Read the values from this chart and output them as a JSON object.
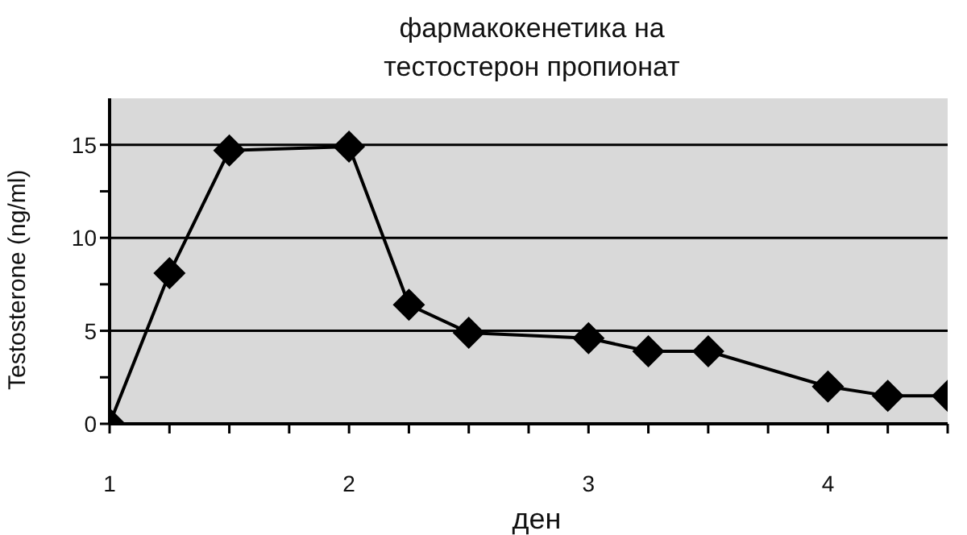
{
  "chart_data": {
    "type": "line",
    "title": "фармакокенетика на\nтестостерон пропионат",
    "xlabel": "ден",
    "ylabel": "Testosterone (ng/ml)",
    "x": [
      1,
      1.25,
      1.5,
      2,
      2.25,
      2.5,
      3,
      3.25,
      3.5,
      4,
      4.25,
      4.5
    ],
    "series": [
      {
        "color": "#000000",
        "values": [
          0,
          8.1,
          14.7,
          14.9,
          6.4,
          4.9,
          4.6,
          3.9,
          3.9,
          2.0,
          1.5,
          1.5
        ]
      }
    ],
    "xlim": [
      1,
      4.5
    ],
    "xticks": [
      1,
      {
        "value": 1.25,
        "label": null
      },
      {
        "value": 1.5,
        "label": null
      },
      {
        "value": 1.75,
        "label": null
      },
      2,
      {
        "value": 2.25,
        "label": null
      },
      {
        "value": 2.5,
        "label": null
      },
      {
        "value": 2.75,
        "label": null
      },
      3,
      {
        "value": 3.25,
        "label": null
      },
      {
        "value": 3.5,
        "label": null
      },
      {
        "value": 3.75,
        "label": null
      },
      4,
      {
        "value": 4.25,
        "label": null
      },
      {
        "value": 4.5,
        "label": null
      }
    ],
    "ylim": [
      0,
      17.5
    ],
    "yticks": [
      0,
      {
        "value": 2.5,
        "label": null
      },
      5,
      {
        "value": 7.5,
        "label": null
      },
      10,
      {
        "value": 12.5,
        "label": null
      },
      15
    ],
    "grid": "y",
    "marker": "diamond",
    "line_style": "solid"
  }
}
